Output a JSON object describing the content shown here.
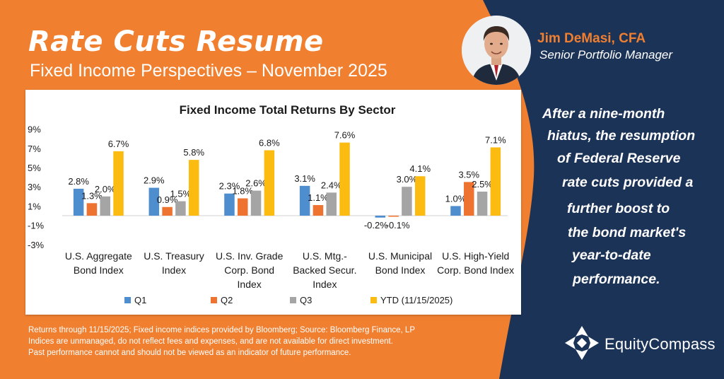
{
  "colors": {
    "orange": "#f07f30",
    "navy": "#1c3358",
    "q1": "#4e8ecf",
    "q2": "#ee7330",
    "q3": "#a5a5a5",
    "ytd": "#fbbb11"
  },
  "header": {
    "title": "Rate Cuts Resume",
    "subtitle": "Fixed Income Perspectives – November 2025"
  },
  "author": {
    "name": "Jim DeMasi, CFA",
    "title": "Senior Portfolio Manager"
  },
  "quote": [
    "After a nine-month",
    "hiatus, the resumption",
    "of Federal Reserve",
    "rate cuts provided a",
    "further boost to",
    "the bond market's",
    "year-to-date",
    "performance."
  ],
  "chart_data": {
    "type": "bar",
    "title": "Fixed Income Total Returns By Sector",
    "categories": [
      [
        "U.S. Aggregate",
        "Bond Index"
      ],
      [
        "U.S. Treasury",
        "Index"
      ],
      [
        "U.S. Inv. Grade",
        "Corp. Bond",
        "Index"
      ],
      [
        "U.S. Mtg.-",
        "Backed Secur.",
        "Index"
      ],
      [
        "U.S. Municipal",
        "Bond Index"
      ],
      [
        "U.S. High-Yield",
        "Corp. Bond Index"
      ]
    ],
    "series": [
      {
        "name": "Q1",
        "values": [
          2.8,
          2.9,
          2.3,
          3.1,
          -0.2,
          1.0
        ],
        "labels": [
          "2.8%",
          "2.9%",
          "2.3%",
          "3.1%",
          "-0.2%",
          "1.0%"
        ]
      },
      {
        "name": "Q2",
        "values": [
          1.3,
          0.9,
          1.8,
          1.1,
          -0.1,
          3.5
        ],
        "labels": [
          "1.3%",
          "0.9%",
          "1.8%",
          "1.1%",
          "-0.1%",
          "3.5%"
        ]
      },
      {
        "name": "Q3",
        "values": [
          2.0,
          1.5,
          2.6,
          2.4,
          3.0,
          2.5
        ],
        "labels": [
          "2.0%",
          "1.5%",
          "2.6%",
          "2.4%",
          "3.0%",
          "2.5%"
        ]
      },
      {
        "name": "YTD (11/15/2025)",
        "values": [
          6.7,
          5.8,
          6.8,
          7.6,
          4.1,
          7.1
        ],
        "labels": [
          "6.7%",
          "5.8%",
          "6.8%",
          "7.6%",
          "4.1%",
          "7.1%"
        ]
      }
    ],
    "yticks": [
      "9%",
      "7%",
      "5%",
      "3%",
      "1%",
      "-1%",
      "-3%"
    ],
    "ytick_values": [
      9,
      7,
      5,
      3,
      1,
      -1,
      -3
    ],
    "ylim": [
      -3,
      9
    ],
    "grid": false,
    "legend": "bottom"
  },
  "footnotes": [
    "Returns through 11/15/2025; Fixed income indices provided by Bloomberg; Source: Bloomberg Finance, LP",
    "Indices are unmanaged, do not reflect fees and expenses, and are not available for direct investment.",
    "Past performance cannot and should not be viewed as an indicator of future performance."
  ],
  "logo": {
    "text": "EquityCompass"
  }
}
